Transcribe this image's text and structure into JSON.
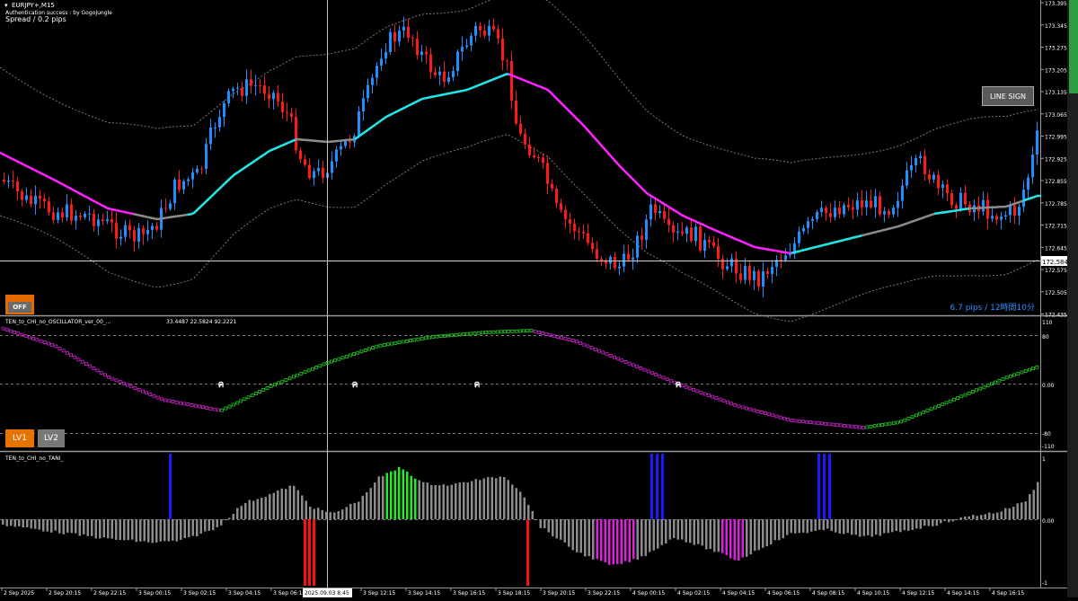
{
  "main_chart": {
    "symbol_title": "EURJPY+,M15",
    "auth_text": "Authentication success : by GogoJungle",
    "spread_text": "Spread / 0.2 pips",
    "current_price": "172.584",
    "info_text": "6.7 pips / 12時間10分",
    "price_ticks": [
      "173.395",
      "173.345",
      "173.275",
      "173.205",
      "173.135",
      "173.065",
      "172.995",
      "172.925",
      "172.855",
      "172.785",
      "172.715",
      "172.645",
      "172.575",
      "172.505",
      "172.435"
    ],
    "line_sign_label": "LINE SIGN",
    "off_label": "OFF"
  },
  "oscillator": {
    "title": "TEN_to_CHI_no_OSCILLATOR_ver_00_...",
    "values": "33.4487 22.5824 92.2221",
    "ticks": [
      "110",
      "80",
      "0.00",
      "-80",
      "-110"
    ],
    "signal_glyph": "ค",
    "lv1_label": "LV1",
    "lv2_label": "LV2"
  },
  "tani": {
    "title": "TEN_to_CHI_no_TANI_",
    "ticks": [
      "1",
      "0.00",
      "-1"
    ]
  },
  "time_axis": {
    "labels": [
      "2 Sep 2025",
      "2 Sep 20:15",
      "2 Sep 22:15",
      "3 Sep 00:15",
      "3 Sep 02:15",
      "3 Sep 04:15",
      "3 Sep 06:15",
      "3 Sep 10:15",
      "3 Sep 12:15",
      "3 Sep 14:15",
      "3 Sep 16:15",
      "3 Sep 18:15",
      "3 Sep 20:15",
      "3 Sep 22:15",
      "4 Sep 00:15",
      "4 Sep 02:15",
      "4 Sep 04:15",
      "4 Sep 06:15",
      "4 Sep 08:15",
      "4 Sep 10:15",
      "4 Sep 12:15",
      "4 Sep 14:15",
      "4 Sep 16:15"
    ],
    "crosshair_label": "2025.09.03 8:45"
  },
  "colors": {
    "bull": "#1e8fff",
    "bear": "#ff1a1a",
    "ma_up": "#22e6e6",
    "ma_down": "#ff22ff",
    "ma_flat": "#8a8a8a",
    "osc_up": "#22cc22",
    "osc_down": "#cc22cc",
    "hist_gray": "#8c8c8c",
    "hist_blue": "#1a1aff",
    "hist_green": "#22ee22",
    "hist_red": "#ff1010",
    "hist_magenta": "#dd22dd"
  }
}
